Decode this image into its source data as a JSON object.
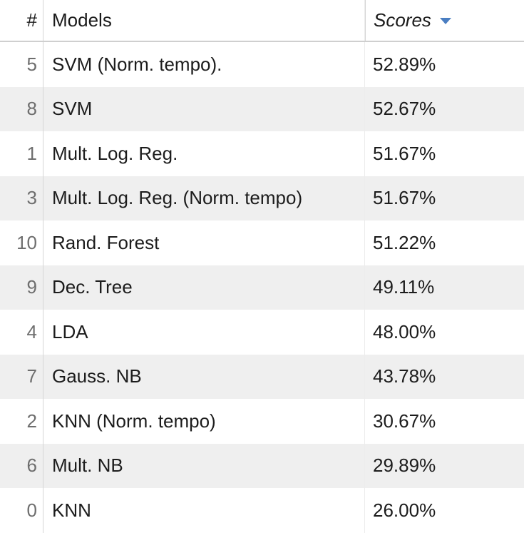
{
  "table": {
    "columns": {
      "index": "#",
      "model": "Models",
      "score": "Scores",
      "score_sort_icon": "sort-descending-icon"
    },
    "sort": {
      "column": "Scores",
      "direction": "descending"
    },
    "rows": [
      {
        "index": "5",
        "model": "SVM (Norm. tempo).",
        "score": "52.89%"
      },
      {
        "index": "8",
        "model": "SVM",
        "score": "52.67%"
      },
      {
        "index": "1",
        "model": "Mult. Log. Reg.",
        "score": "51.67%"
      },
      {
        "index": "3",
        "model": "Mult. Log. Reg. (Norm. tempo)",
        "score": "51.67%"
      },
      {
        "index": "10",
        "model": "Rand. Forest",
        "score": "51.22%"
      },
      {
        "index": "9",
        "model": "Dec. Tree",
        "score": "49.11%"
      },
      {
        "index": "4",
        "model": "LDA",
        "score": "48.00%"
      },
      {
        "index": "7",
        "model": "Gauss. NB",
        "score": "43.78%"
      },
      {
        "index": "2",
        "model": "KNN (Norm. tempo)",
        "score": "30.67%"
      },
      {
        "index": "6",
        "model": "Mult. NB",
        "score": "29.89%"
      },
      {
        "index": "0",
        "model": "KNN",
        "score": "26.00%"
      }
    ]
  },
  "colors": {
    "accent": "#4a7ec2",
    "row_alt": "#efefef",
    "row_base": "#ffffff",
    "index_text": "#6e6e6e"
  }
}
